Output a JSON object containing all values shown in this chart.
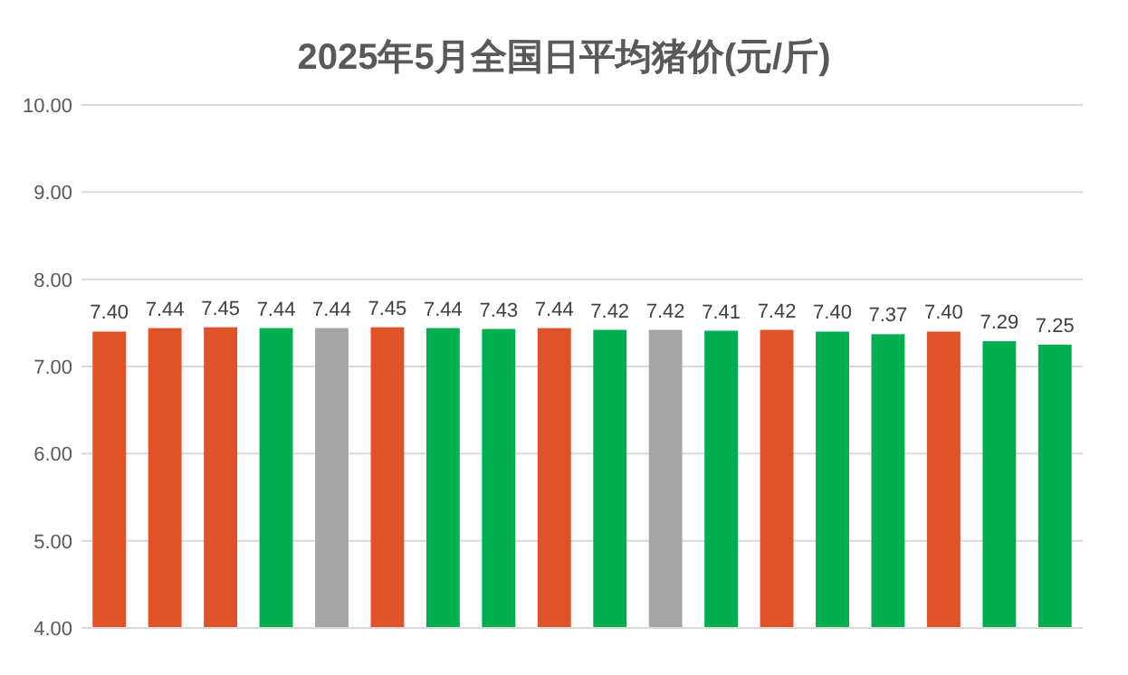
{
  "chart_data": {
    "type": "bar",
    "title": "2025年5月全国日平均猪价(元/斤)",
    "categories": [
      null,
      null,
      null,
      null,
      null,
      null,
      null,
      null,
      null,
      null,
      null,
      null,
      null,
      null,
      null,
      null,
      null,
      null
    ],
    "values": [
      7.4,
      7.44,
      7.45,
      7.44,
      7.44,
      7.45,
      7.44,
      7.43,
      7.44,
      7.42,
      7.42,
      7.41,
      7.42,
      7.4,
      7.37,
      7.4,
      7.29,
      7.25
    ],
    "colors": [
      "#e0522a",
      "#e0522a",
      "#e0522a",
      "#00b050",
      "#a5a5a5",
      "#e0522a",
      "#00b050",
      "#00b050",
      "#e0522a",
      "#00b050",
      "#a5a5a5",
      "#00b050",
      "#e0522a",
      "#00b050",
      "#00b050",
      "#e0522a",
      "#00b050",
      "#00b050"
    ],
    "value_labels": [
      "7.40",
      "7.44",
      "7.45",
      "7.44",
      "7.44",
      "7.45",
      "7.44",
      "7.43",
      "7.44",
      "7.42",
      "7.42",
      "7.41",
      "7.42",
      "7.40",
      "7.37",
      "7.40",
      "7.29",
      "7.25"
    ],
    "ylim": [
      4,
      10
    ],
    "yticks": [
      {
        "value": 4,
        "label": "4.00"
      },
      {
        "value": 5,
        "label": "5.00"
      },
      {
        "value": 6,
        "label": "6.00"
      },
      {
        "value": 7,
        "label": "7.00"
      },
      {
        "value": 8,
        "label": "8.00"
      },
      {
        "value": 9,
        "label": "9.00"
      },
      {
        "value": 10,
        "label": "10.00"
      }
    ],
    "grid": "y"
  }
}
